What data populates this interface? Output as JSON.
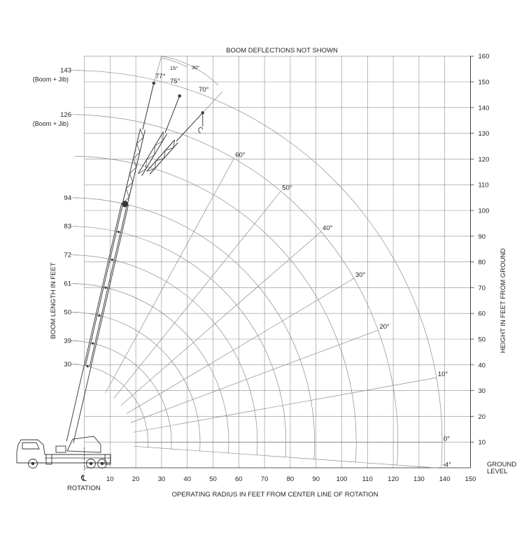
{
  "title": "BOOM DEFLECTIONS NOT SHOWN",
  "x_axis_label": "OPERATING RADIUS IN FEET FROM CENTER LINE OF ROTATION",
  "left_axis_label": "BOOM LENGTH IN FEET",
  "right_axis_label": "HEIGHT IN FEET FROM GROUND",
  "ground_label": [
    "GROUND",
    "LEVEL"
  ],
  "centerline_symbol": "℄",
  "centerline_label": "ROTATION",
  "x_ticks": [
    "10",
    "20",
    "30",
    "40",
    "50",
    "60",
    "70",
    "80",
    "90",
    "100",
    "110",
    "120",
    "130",
    "140",
    "150"
  ],
  "height_ticks": [
    "10",
    "20",
    "30",
    "40",
    "50",
    "60",
    "70",
    "80",
    "90",
    "100",
    "110",
    "120",
    "130",
    "140",
    "150",
    "160"
  ],
  "boom_labels": [
    {
      "value": "143",
      "sub": "(Boom + Jib)",
      "length": 143
    },
    {
      "value": "126",
      "sub": "(Boom + Jib)",
      "length": 126
    },
    {
      "value": "94",
      "length": 94
    },
    {
      "value": "83",
      "length": 83
    },
    {
      "value": "72",
      "length": 72
    },
    {
      "value": "61",
      "length": 61
    },
    {
      "value": "50",
      "length": 50
    },
    {
      "value": "39",
      "length": 39
    },
    {
      "value": "30",
      "length": 30
    }
  ],
  "angle_labels": [
    {
      "text": "60°",
      "angle": 60
    },
    {
      "text": "50°",
      "angle": 50
    },
    {
      "text": "40°",
      "angle": 40
    },
    {
      "text": "30°",
      "angle": 30
    },
    {
      "text": "20°",
      "angle": 20
    },
    {
      "text": "10°",
      "angle": 10
    },
    {
      "text": "0°",
      "angle": 0
    },
    {
      "text": "-4°",
      "angle": -4
    }
  ],
  "jib_angle_labels": [
    "77°",
    "75°",
    "70°"
  ],
  "jib_offset_labels": [
    "15°",
    "30°"
  ],
  "colors": {
    "grid": "#8c8c8c",
    "ink": "#222222",
    "boom": "#333333"
  }
}
